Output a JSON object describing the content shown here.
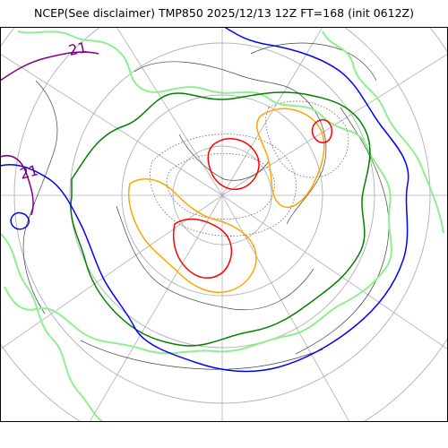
{
  "title": "NCEP(See disclaimer) TMP850 2025/12/13 12Z FT=168 (init 0612Z)",
  "contour_labels": [
    {
      "text": "21"
    },
    {
      "text": "21"
    }
  ],
  "colors": {
    "frame": "#000000",
    "graticule": "#b0b0b0",
    "coast": "#444444",
    "light_green": "#90ee90",
    "green": "#008000",
    "blue": "#0000ff",
    "purple": "#800080",
    "orange": "#ffa500",
    "red": "#ff0000",
    "dotted": "#666666"
  }
}
